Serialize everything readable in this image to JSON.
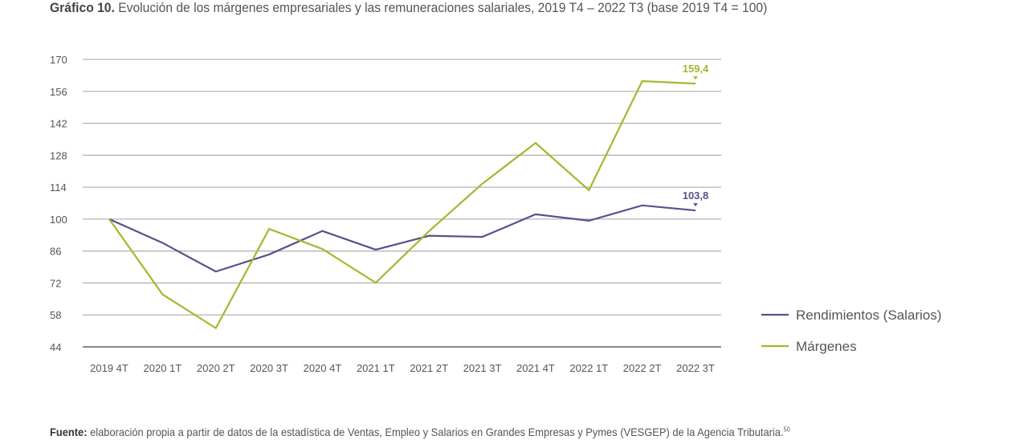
{
  "chart_data": {
    "type": "line",
    "title_bold": "Gráfico 10.",
    "title": "Evolución de los márgenes empresariales y las remuneraciones salariales, 2019 T4 – 2022 T3 (base 2019 T4 = 100)",
    "categories": [
      "2019 4T",
      "2020 1T",
      "2020 2T",
      "2020 3T",
      "2020 4T",
      "2021 1T",
      "2021 2T",
      "2021 3T",
      "2021 4T",
      "2022 1T",
      "2022 2T",
      "2022 3T"
    ],
    "ylim": [
      44,
      170
    ],
    "yticks": [
      170,
      156,
      142,
      128,
      114,
      100,
      86,
      72,
      58,
      44
    ],
    "grid": true,
    "legend_position": "right",
    "series": [
      {
        "name": "Rendimientos (Salarios)",
        "color": "#5b4f8a",
        "values": [
          100,
          89.6,
          77.0,
          84.5,
          94.8,
          86.6,
          92.7,
          92.2,
          102.1,
          99.3,
          106.0,
          103.8
        ],
        "end_label": "103,8"
      },
      {
        "name": "Márgenes",
        "color": "#9dbb2f",
        "values": [
          100,
          67.0,
          52.2,
          95.7,
          86.9,
          72.1,
          94.7,
          115.5,
          133.4,
          112.7,
          160.5,
          159.4
        ],
        "end_label": "159,4"
      }
    ]
  },
  "source": {
    "label": "Fuente:",
    "text": "elaboración propia a partir de datos de la estadística de Ventas, Empleo y Salarios en Grandes Empresas y Pymes (VESGEP) de la Agencia Tributaria.",
    "footnote": "50"
  }
}
